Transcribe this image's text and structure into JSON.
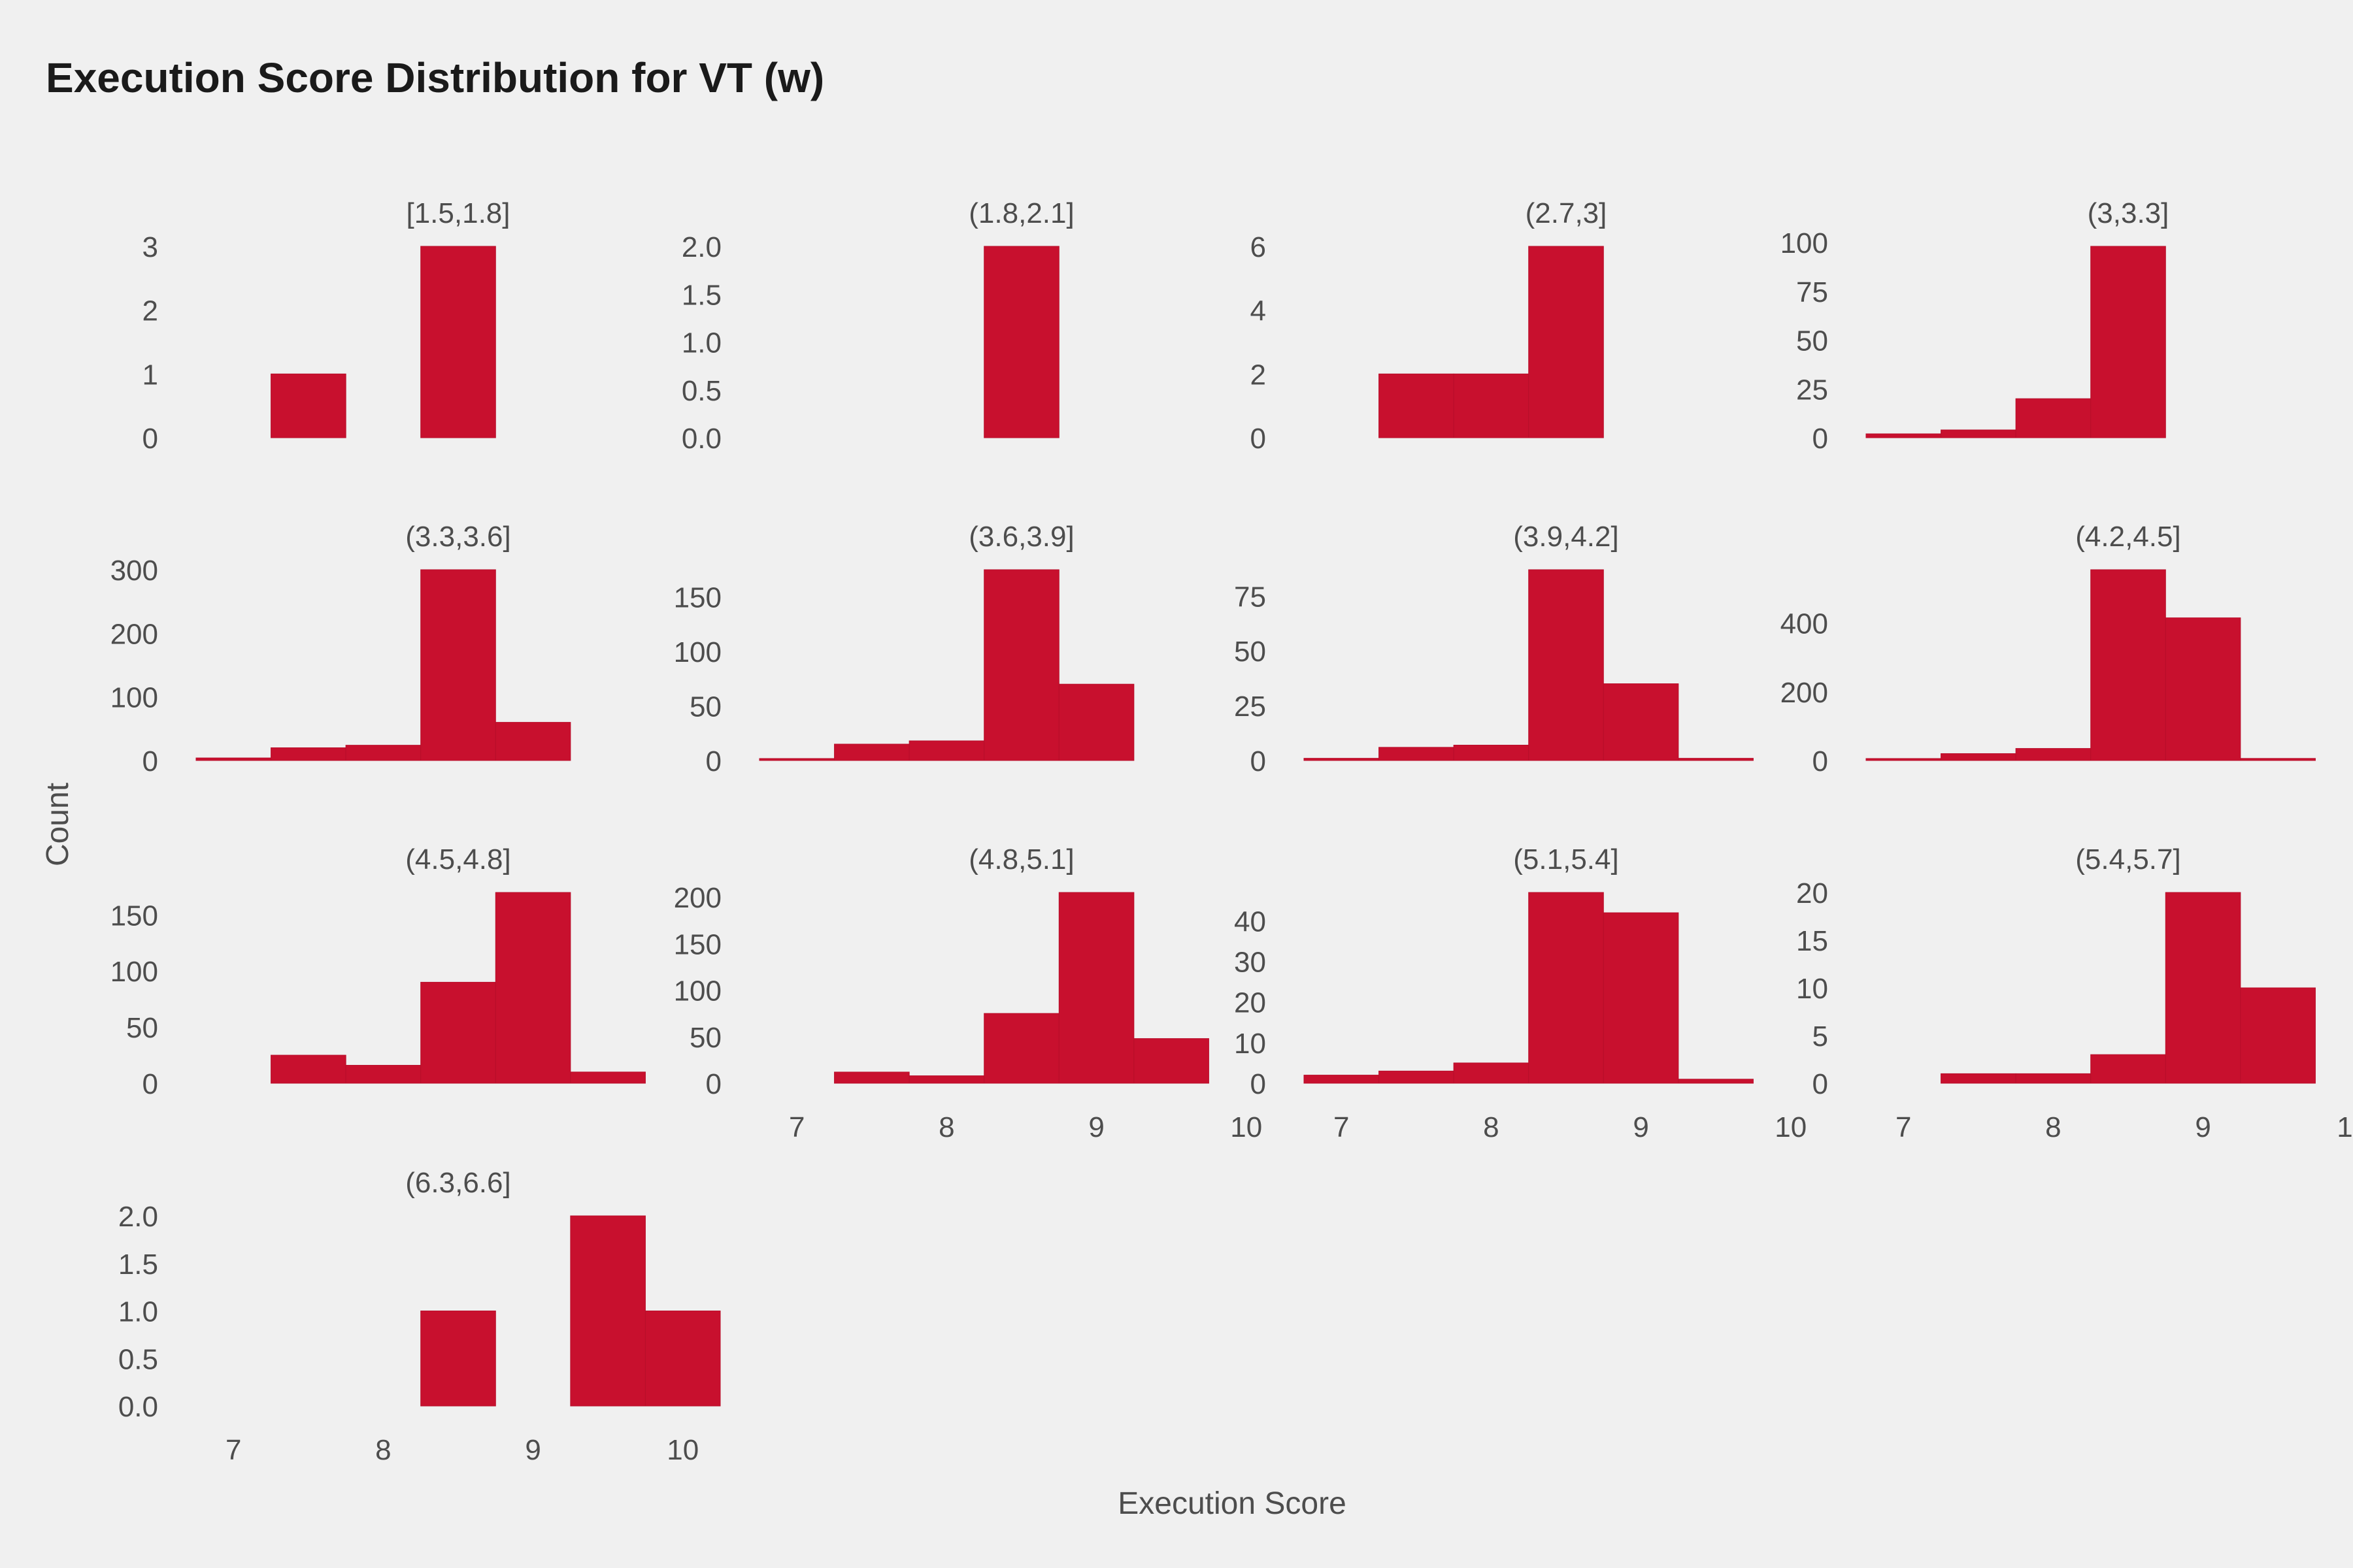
{
  "chart_data": {
    "type": "bar",
    "title": "Execution Score Distribution for VT (w)",
    "xlabel": "Execution Score",
    "ylabel": "Count",
    "bar_color": "#c8102e",
    "background": "#f0f0f0",
    "grid": false,
    "xlim": [
      6.75,
      10.25
    ],
    "x_ticks": [
      7,
      8,
      9,
      10
    ],
    "bin_edges": [
      6.75,
      7.25,
      7.75,
      8.25,
      8.75,
      9.25,
      9.75,
      10.25
    ],
    "panels": [
      {
        "label": "[1.5,1.8]",
        "ylim": [
          0,
          3
        ],
        "y_ticks": [
          "0",
          "1",
          "2",
          "3"
        ],
        "y_tick_values": [
          0,
          1,
          2,
          3
        ],
        "counts": [
          0,
          1,
          0,
          3,
          0,
          0,
          0
        ]
      },
      {
        "label": "(1.8,2.1]",
        "ylim": [
          0,
          2
        ],
        "y_ticks": [
          "0.0",
          "0.5",
          "1.0",
          "1.5",
          "2.0"
        ],
        "y_tick_values": [
          0,
          0.5,
          1,
          1.5,
          2
        ],
        "counts": [
          0,
          0,
          0,
          2,
          0,
          0,
          0
        ]
      },
      {
        "label": "(2.7,3]",
        "ylim": [
          0,
          6
        ],
        "y_ticks": [
          "0",
          "2",
          "4",
          "6"
        ],
        "y_tick_values": [
          0,
          2,
          4,
          6
        ],
        "counts": [
          0,
          2,
          2,
          6,
          0,
          0,
          0
        ]
      },
      {
        "label": "(3,3.3]",
        "ylim": [
          0,
          98
        ],
        "y_ticks": [
          "0",
          "25",
          "50",
          "75",
          "100"
        ],
        "y_tick_values": [
          0,
          25,
          50,
          75,
          100
        ],
        "counts": [
          2,
          4,
          20,
          98,
          0,
          0,
          0
        ]
      },
      {
        "label": "(3.3,3.6]",
        "ylim": [
          0,
          300
        ],
        "y_ticks": [
          "0",
          "100",
          "200",
          "300"
        ],
        "y_tick_values": [
          0,
          100,
          200,
          300
        ],
        "counts": [
          4,
          20,
          24,
          300,
          60,
          0,
          0
        ]
      },
      {
        "label": "(3.6,3.9]",
        "ylim": [
          0,
          175
        ],
        "y_ticks": [
          "0",
          "50",
          "100",
          "150"
        ],
        "y_tick_values": [
          0,
          50,
          100,
          150
        ],
        "counts": [
          1,
          15,
          18,
          175,
          70,
          0,
          0
        ]
      },
      {
        "label": "(3.9,4.2]",
        "ylim": [
          0,
          87
        ],
        "y_ticks": [
          "0",
          "25",
          "50",
          "75"
        ],
        "y_tick_values": [
          0,
          25,
          50,
          75
        ],
        "counts": [
          1,
          6,
          7,
          87,
          35,
          1,
          0
        ]
      },
      {
        "label": "(4.2,4.5]",
        "ylim": [
          0,
          555
        ],
        "y_ticks": [
          "0",
          "200",
          "400"
        ],
        "y_tick_values": [
          0,
          200,
          400
        ],
        "counts": [
          2,
          20,
          35,
          555,
          415,
          6,
          0
        ]
      },
      {
        "label": "(4.5,4.8]",
        "ylim": [
          0,
          170
        ],
        "y_ticks": [
          "0",
          "50",
          "100",
          "150"
        ],
        "y_tick_values": [
          0,
          50,
          100,
          150
        ],
        "counts": [
          0,
          25,
          16,
          90,
          170,
          10,
          0
        ]
      },
      {
        "label": "(4.8,5.1]",
        "ylim": [
          0,
          205
        ],
        "y_ticks": [
          "0",
          "50",
          "100",
          "150",
          "200"
        ],
        "y_tick_values": [
          0,
          50,
          100,
          150,
          200
        ],
        "counts": [
          0,
          12,
          8,
          75,
          205,
          48,
          0
        ]
      },
      {
        "label": "(5.1,5.4]",
        "ylim": [
          0,
          47
        ],
        "y_ticks": [
          "0",
          "10",
          "20",
          "30",
          "40"
        ],
        "y_tick_values": [
          0,
          10,
          20,
          30,
          40
        ],
        "counts": [
          2,
          3,
          5,
          47,
          42,
          1,
          0
        ]
      },
      {
        "label": "(5.4,5.7]",
        "ylim": [
          0,
          20
        ],
        "y_ticks": [
          "0",
          "5",
          "10",
          "15",
          "20"
        ],
        "y_tick_values": [
          0,
          5,
          10,
          15,
          20
        ],
        "counts": [
          0,
          1,
          1,
          3,
          20,
          10,
          0
        ]
      },
      {
        "label": "(6.3,6.6]",
        "ylim": [
          0,
          2
        ],
        "y_ticks": [
          "0.0",
          "0.5",
          "1.0",
          "1.5",
          "2.0"
        ],
        "y_tick_values": [
          0,
          0.5,
          1,
          1.5,
          2
        ],
        "counts": [
          0,
          0,
          0,
          1,
          0,
          2,
          1
        ]
      }
    ],
    "x_tick_labels_on_panels": [
      9,
      10,
      11,
      12
    ]
  }
}
